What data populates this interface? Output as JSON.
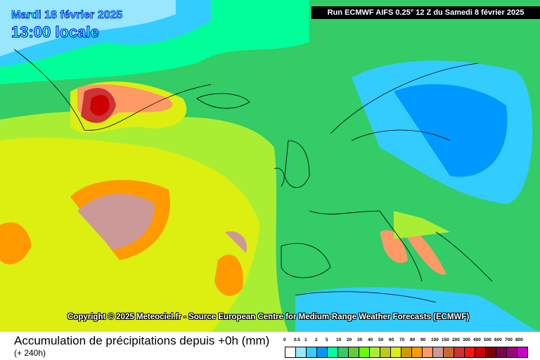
{
  "header": {
    "date": "Mardi 18 février 2025",
    "time": "13:00 locale",
    "run": "Run ECMWF AIFS 0.25° 12 Z du Samedi 8 février 2025"
  },
  "copyright": "Copyright © 2025 Meteociel.fr - Source European Centre for Medium-Range Weather Forecasts (ECMWF)",
  "footer": {
    "title": "Accumulation de précipitations depuis +0h (mm)",
    "subtitle": "(+ 240h)"
  },
  "legend": {
    "labels": [
      "0",
      "0.5",
      "1",
      "2",
      "5",
      "10",
      "20",
      "30",
      "40",
      "50",
      "60",
      "70",
      "80",
      "90",
      "100",
      "150",
      "200",
      "300",
      "400",
      "500",
      "600",
      "700",
      "800"
    ],
    "colors": [
      "#ffffff",
      "#99e6ff",
      "#33ccff",
      "#0099ff",
      "#00ff99",
      "#33cc66",
      "#66cc33",
      "#66ff00",
      "#aaee33",
      "#bbcc11",
      "#ddee11",
      "#cc9900",
      "#ff9900",
      "#ff9966",
      "#cc9999",
      "#cc6633",
      "#cc3333",
      "#ff1111",
      "#cc0000",
      "#800000",
      "#800050",
      "#a00080",
      "#cc00cc"
    ]
  }
}
